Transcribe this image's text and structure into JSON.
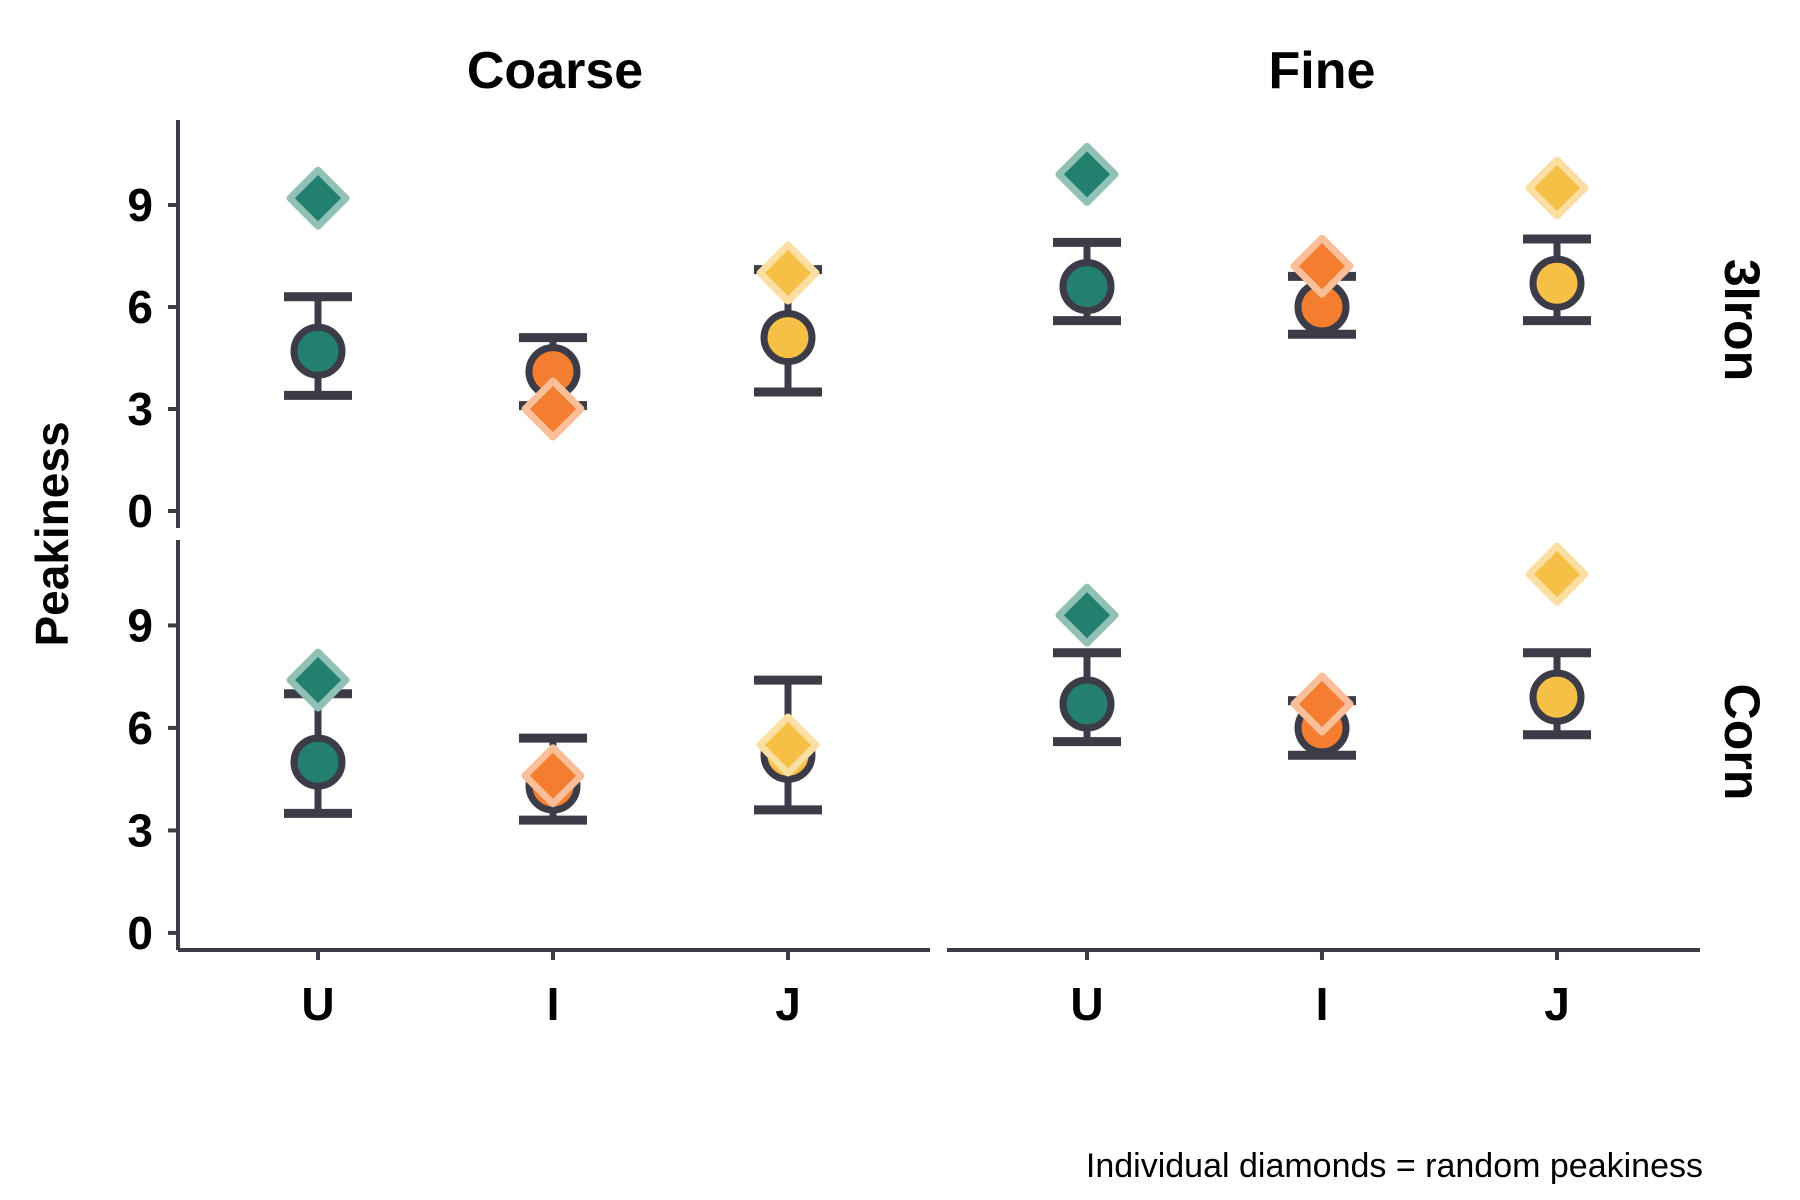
{
  "chart_data": {
    "type": "scatter",
    "ylabel": "Peakiness",
    "caption": "Individual diamonds = random peakiness",
    "columns": [
      "Coarse",
      "Fine"
    ],
    "rows": [
      "3Iron",
      "Corn"
    ],
    "categories": [
      "U",
      "I",
      "J"
    ],
    "y_ticks": [
      0,
      3,
      6,
      9
    ],
    "ylim": [
      -0.5,
      11.5
    ],
    "grid": false,
    "colors": {
      "U": "#23806e",
      "I": "#f47d30",
      "J": "#f6bf45",
      "axis": "#3c3c48",
      "errorbar": "#3c3c48"
    },
    "panels": [
      {
        "column": "Coarse",
        "row": "3Iron",
        "points": [
          {
            "category": "U",
            "mean": 4.7,
            "lower": 3.4,
            "upper": 6.3,
            "diamond": 9.2
          },
          {
            "category": "I",
            "mean": 4.1,
            "lower": 3.1,
            "upper": 5.1,
            "diamond": 3.0
          },
          {
            "category": "J",
            "mean": 5.1,
            "lower": 3.5,
            "upper": 7.1,
            "diamond": 7.0
          }
        ]
      },
      {
        "column": "Fine",
        "row": "3Iron",
        "points": [
          {
            "category": "U",
            "mean": 6.6,
            "lower": 5.6,
            "upper": 7.9,
            "diamond": 9.9
          },
          {
            "category": "I",
            "mean": 6.0,
            "lower": 5.2,
            "upper": 6.9,
            "diamond": 7.2
          },
          {
            "category": "J",
            "mean": 6.7,
            "lower": 5.6,
            "upper": 8.0,
            "diamond": 9.5
          }
        ]
      },
      {
        "column": "Coarse",
        "row": "Corn",
        "points": [
          {
            "category": "U",
            "mean": 5.0,
            "lower": 3.5,
            "upper": 7.0,
            "diamond": 7.4
          },
          {
            "category": "I",
            "mean": 4.3,
            "lower": 3.3,
            "upper": 5.7,
            "diamond": 4.6
          },
          {
            "category": "J",
            "mean": 5.2,
            "lower": 3.6,
            "upper": 7.4,
            "diamond": 5.5
          }
        ]
      },
      {
        "column": "Fine",
        "row": "Corn",
        "points": [
          {
            "category": "U",
            "mean": 6.7,
            "lower": 5.6,
            "upper": 8.2,
            "diamond": 9.3
          },
          {
            "category": "I",
            "mean": 6.0,
            "lower": 5.2,
            "upper": 6.8,
            "diamond": 6.7
          },
          {
            "category": "J",
            "mean": 6.9,
            "lower": 5.8,
            "upper": 8.2,
            "diamond": 10.5
          }
        ]
      }
    ]
  }
}
